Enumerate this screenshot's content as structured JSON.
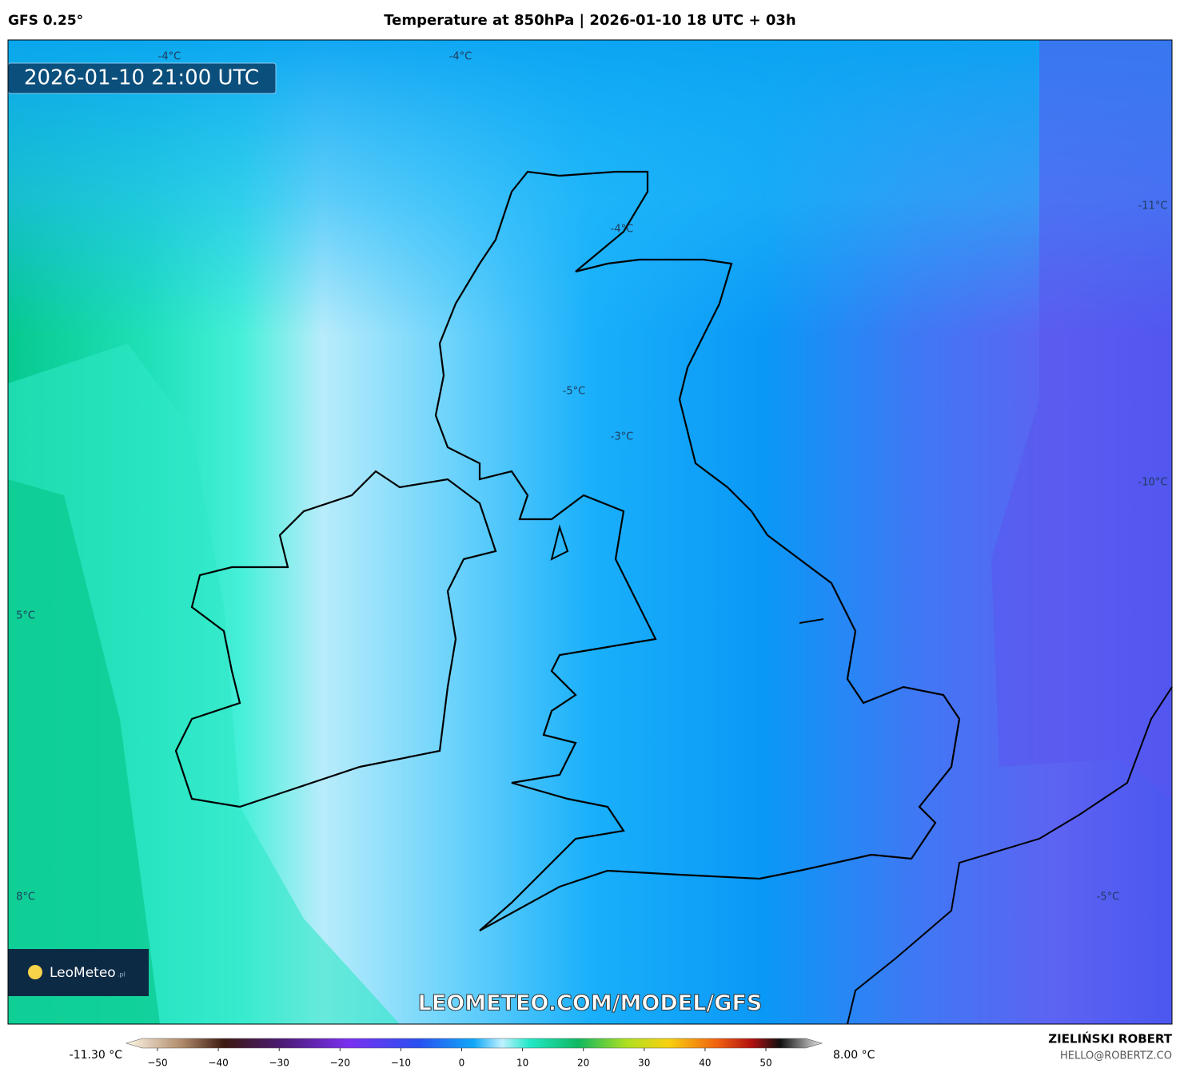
{
  "header": {
    "model": "GFS 0.25°",
    "title": "Temperature at 850hPa | 2026-01-10 18 UTC + 03h"
  },
  "map": {
    "timestamp": "2026-01-10 21:00 UTC",
    "contour_labels": [
      "-4°C",
      "-4°C",
      "-4°C",
      "-11°C",
      "-5°C",
      "-3°C",
      "-10°C",
      "5°C",
      "8°C",
      "-5°C"
    ],
    "watermark": "LEOMETEO.COM/MODEL/GFS",
    "logo": {
      "name": "LeoMeteo",
      "suffix": ".pl"
    }
  },
  "legend": {
    "min_label": "-11.30 °C",
    "max_label": "8.00 °C",
    "ticks": [
      {
        "value": -50,
        "label": "−50"
      },
      {
        "value": -40,
        "label": "−40"
      },
      {
        "value": -30,
        "label": "−30"
      },
      {
        "value": -20,
        "label": "−20"
      },
      {
        "value": -10,
        "label": "−10"
      },
      0,
      10,
      20,
      30,
      40,
      50
    ]
  },
  "credits": {
    "author": "ZIELIŃSKI ROBERT",
    "contact": "HELLO@ROBERTZ.CO"
  }
}
